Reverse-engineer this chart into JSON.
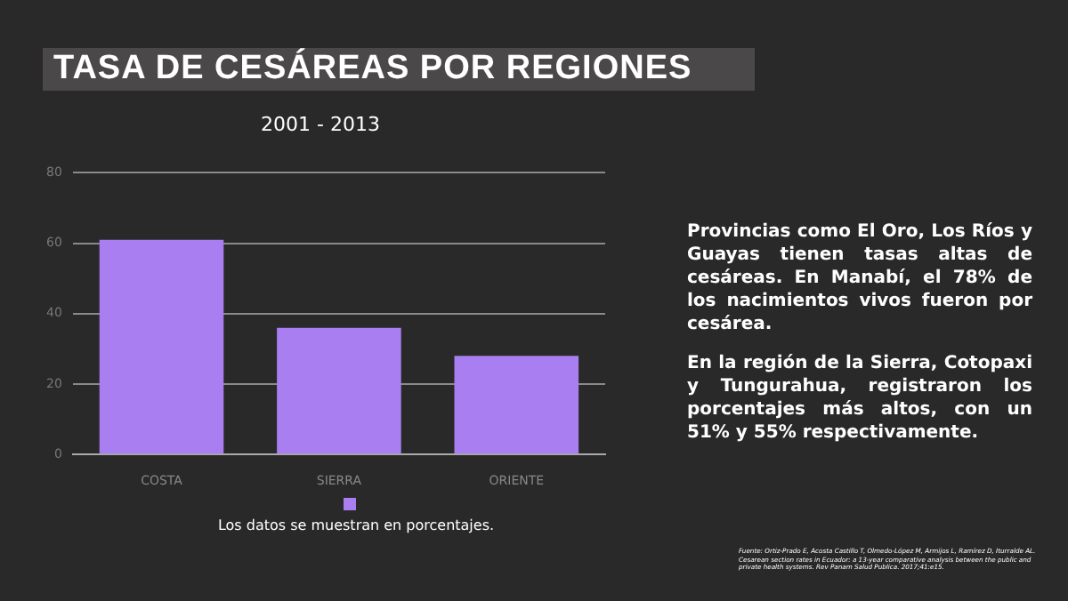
{
  "chart_data": {
    "type": "bar",
    "title": "TASA DE CESÁREAS POR REGIONES",
    "subtitle": "2001 - 2013",
    "categories": [
      "COSTA",
      "SIERRA",
      "ORIENTE"
    ],
    "series": [
      {
        "color": "#a97ef0",
        "values": [
          61,
          36,
          28
        ]
      }
    ],
    "ylim": [
      0,
      80
    ],
    "yticks": [
      0,
      20,
      40,
      60,
      80
    ],
    "grid": "y",
    "annotations": [
      "Los datos se muestran en porcentajes.",
      "Provincias como El Oro, Los Ríos y Guayas tienen tasas altas de cesáreas. En Manabí, el 78% de los nacimientos vivos fueron por cesárea.",
      "En la región de la Sierra, Cotopaxi y Tungurahua, registraron los porcentajes más altos,  con un 51% y 55% respectivamente.",
      "Fuente: Ortiz-Prado E, Acosta Castillo T, Olmedo-López M, Armijos L, Ramírez D, Iturralde AL. Cesarean section rates in Ecuador: a 13-year comparative analysis between the public and private health systems. Rev Panam Salud Publica. 2017;41:e15."
    ]
  }
}
